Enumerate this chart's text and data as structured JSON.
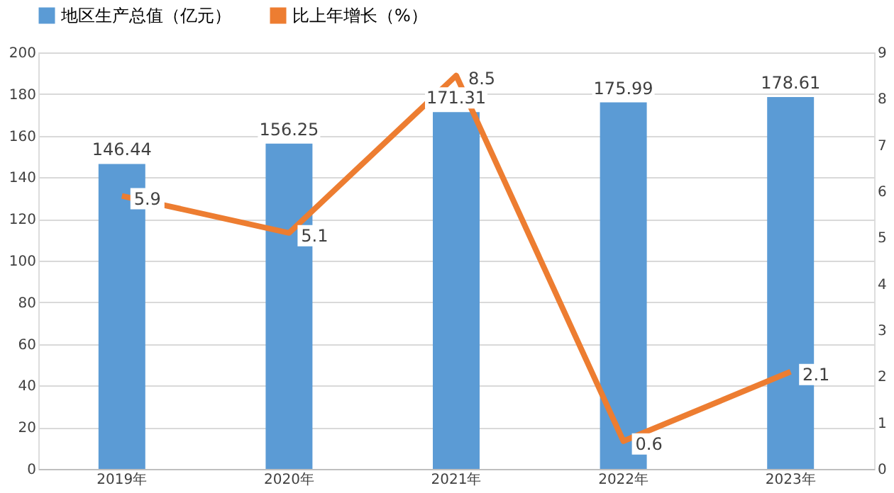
{
  "chart_data": {
    "type": "bar",
    "categories": [
      "2019年",
      "2020年",
      "2021年",
      "2022年",
      "2023年"
    ],
    "series": [
      {
        "name": "地区生产总值（亿元）",
        "color": "#5b9bd5",
        "values": [
          146.44,
          156.25,
          171.31,
          175.99,
          178.61
        ]
      },
      {
        "name": "比上年增长（%）",
        "color": "#ed7d31",
        "type": "line",
        "axis": "y2",
        "values": [
          5.9,
          5.1,
          8.5,
          0.6,
          2.1
        ]
      }
    ],
    "ylim": [
      0,
      200
    ],
    "yticks": [
      0,
      20,
      40,
      60,
      80,
      100,
      120,
      140,
      160,
      180,
      200
    ],
    "y2lim": [
      0,
      9
    ],
    "y2ticks": [
      0,
      1,
      2,
      3,
      4,
      5,
      6,
      7,
      8,
      9
    ],
    "grid": "y",
    "legend": "top",
    "data_labels": true
  }
}
